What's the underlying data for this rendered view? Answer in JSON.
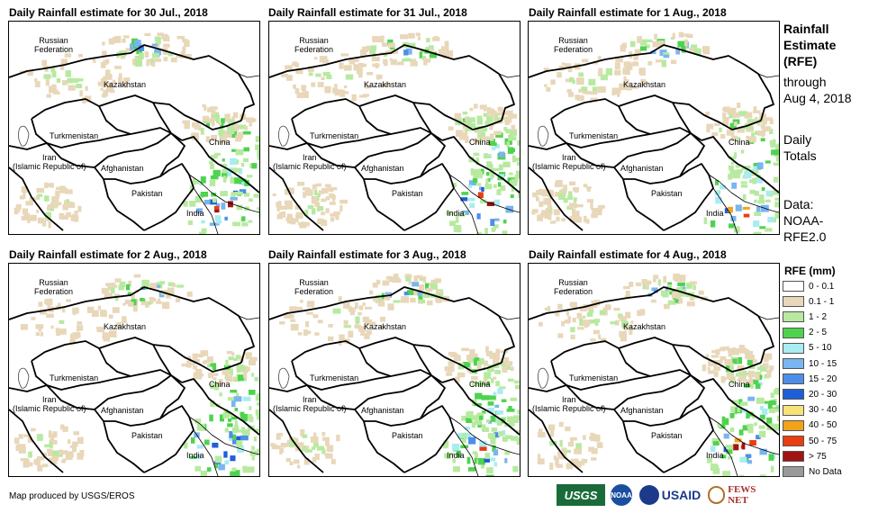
{
  "panels": [
    {
      "title": "Daily Rainfall estimate for 30 Jul., 2018"
    },
    {
      "title": "Daily Rainfall estimate for 31 Jul., 2018"
    },
    {
      "title": "Daily Rainfall estimate for 1 Aug., 2018"
    },
    {
      "title": "Daily Rainfall estimate for 2 Aug., 2018"
    },
    {
      "title": "Daily Rainfall estimate for 3 Aug., 2018"
    },
    {
      "title": "Daily Rainfall estimate for 4 Aug., 2018"
    }
  ],
  "map_labels": {
    "russia": "Russian\nFederation",
    "kazakhstan": "Kazakhstan",
    "turkmenistan": "Turkmenistan",
    "iran": "Iran\n(Islamic Republic of)",
    "afghanistan": "Afghanistan",
    "pakistan": "Pakistan",
    "india": "India",
    "china": "China"
  },
  "side": {
    "heading_line1": "Rainfall",
    "heading_line2": "Estimate",
    "heading_line3": "(RFE)",
    "through": "through",
    "date": "Aug 4, 2018",
    "daily": "Daily",
    "totals": "Totals",
    "data_label": "Data:",
    "data_src1": "NOAA-",
    "data_src2": "RFE2.0"
  },
  "legend": {
    "title": "RFE (mm)",
    "items": [
      {
        "label": "0 - 0.1",
        "color": "#ffffff"
      },
      {
        "label": "0.1 - 1",
        "color": "#e8d7b9"
      },
      {
        "label": "1 - 2",
        "color": "#b7eaa0"
      },
      {
        "label": "2 - 5",
        "color": "#4fd34f"
      },
      {
        "label": "5 - 10",
        "color": "#a9ecf2"
      },
      {
        "label": "10 - 15",
        "color": "#79b5f0"
      },
      {
        "label": "15 - 20",
        "color": "#4d8ee8"
      },
      {
        "label": "20 - 30",
        "color": "#1e5fd8"
      },
      {
        "label": "30 - 40",
        "color": "#f7e27a"
      },
      {
        "label": "40 - 50",
        "color": "#f5a21b"
      },
      {
        "label": "50 - 75",
        "color": "#ea3e10"
      },
      {
        "label": "> 75",
        "color": "#a11414"
      },
      {
        "label": "No Data",
        "color": "#9a9a9a"
      }
    ]
  },
  "credit": "Map produced by USGS/EROS",
  "logos": [
    "USGS",
    "NOAA",
    "USAID",
    "FEWS NET"
  ]
}
